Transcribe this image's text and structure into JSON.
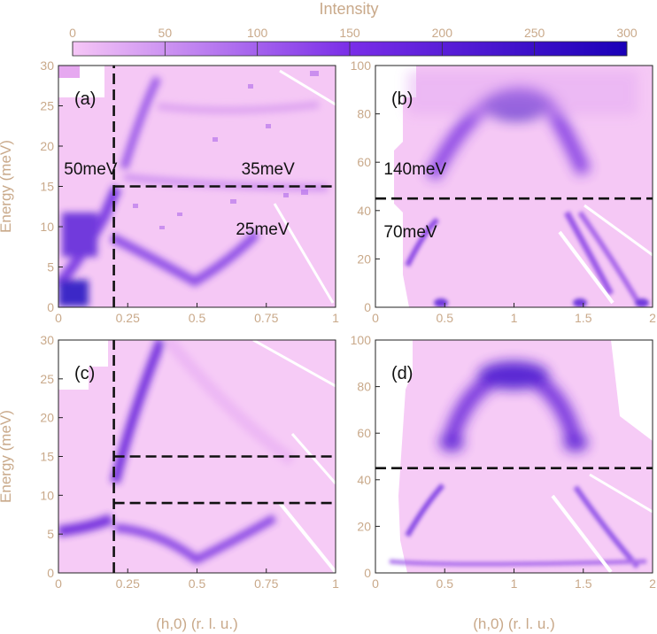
{
  "chart_data": {
    "type": "heatmap",
    "colorbar": {
      "title": "Intensity",
      "range": [
        0,
        300
      ],
      "ticks": [
        "0",
        "50",
        "100",
        "150",
        "200",
        "250",
        "300"
      ],
      "colors": [
        "#f6c6f6",
        "#5a18d8",
        "#1a00b8"
      ]
    },
    "panels": [
      {
        "id": "a",
        "label": "(a)",
        "xlim": [
          0,
          1
        ],
        "ylim": [
          0,
          30
        ],
        "xticks": [
          "0",
          "0.25",
          "0.5",
          "0.75",
          "1"
        ],
        "yticks": [
          "0",
          "5",
          "10",
          "15",
          "20",
          "25",
          "30"
        ],
        "ylabel": "Energy (meV)",
        "xlabel": "",
        "annotations": [
          {
            "text": "50meV",
            "x": 0.02,
            "y": 16.5
          },
          {
            "text": "35meV",
            "x": 0.66,
            "y": 16.5
          },
          {
            "text": "25meV",
            "x": 0.64,
            "y": 9.0
          }
        ],
        "dashed_lines": [
          {
            "x1": 0.2,
            "y1": 0,
            "x2": 0.2,
            "y2": 30
          },
          {
            "x1": 0.2,
            "y1": 15,
            "x2": 1,
            "y2": 15
          }
        ]
      },
      {
        "id": "b",
        "label": "(b)",
        "xlim": [
          0,
          2
        ],
        "ylim": [
          0,
          100
        ],
        "xticks": [
          "0",
          "0.5",
          "1",
          "1.5",
          "2"
        ],
        "yticks": [
          "0",
          "20",
          "40",
          "60",
          "80",
          "100"
        ],
        "ylabel": "",
        "xlabel": "",
        "annotations": [
          {
            "text": "140meV",
            "x": 0.06,
            "y": 55
          },
          {
            "text": "70meV",
            "x": 0.06,
            "y": 29
          }
        ],
        "dashed_lines": [
          {
            "x1": 0,
            "y1": 45,
            "x2": 2,
            "y2": 45
          }
        ]
      },
      {
        "id": "c",
        "label": "(c)",
        "xlim": [
          0,
          1
        ],
        "ylim": [
          0,
          30
        ],
        "xticks": [
          "0",
          "0.25",
          "0.5",
          "0.75",
          "1"
        ],
        "yticks": [
          "0",
          "5",
          "10",
          "15",
          "20",
          "25",
          "30"
        ],
        "ylabel": "Energy (meV)",
        "xlabel": "(h,0) (r. l. u.)",
        "annotations": [],
        "dashed_lines": [
          {
            "x1": 0.2,
            "y1": 0,
            "x2": 0.2,
            "y2": 30
          },
          {
            "x1": 0.2,
            "y1": 15,
            "x2": 1,
            "y2": 15
          },
          {
            "x1": 0.2,
            "y1": 9,
            "x2": 1,
            "y2": 9
          }
        ]
      },
      {
        "id": "d",
        "label": "(d)",
        "xlim": [
          0,
          2
        ],
        "ylim": [
          0,
          100
        ],
        "xticks": [
          "0",
          "0.5",
          "1",
          "1.5",
          "2"
        ],
        "yticks": [
          "0",
          "20",
          "40",
          "60",
          "80",
          "100"
        ],
        "ylabel": "",
        "xlabel": "(h,0) (r. l. u.)",
        "annotations": [],
        "dashed_lines": [
          {
            "x1": 0,
            "y1": 45,
            "x2": 2,
            "y2": 45
          }
        ]
      }
    ]
  }
}
